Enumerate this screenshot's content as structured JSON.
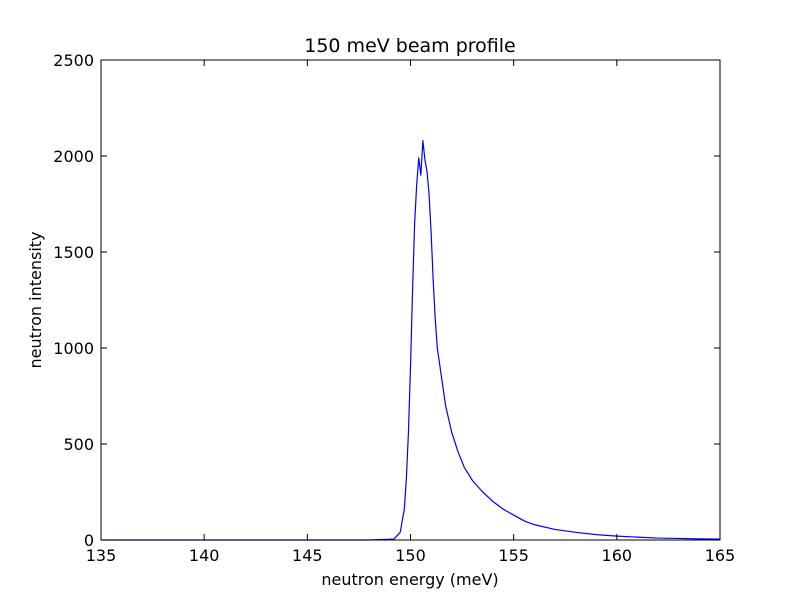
{
  "chart_data": {
    "type": "line",
    "title": "150 meV beam profile",
    "xlabel": "neutron energy (meV)",
    "ylabel": "neutron intensity",
    "xlim": [
      135,
      165
    ],
    "ylim": [
      0,
      2500
    ],
    "xticks": [
      135,
      140,
      145,
      150,
      155,
      160,
      165
    ],
    "yticks": [
      0,
      500,
      1000,
      1500,
      2000,
      2500
    ],
    "grid": false,
    "legend": "none",
    "series": [
      {
        "color": "#0000ff",
        "x": [
          135,
          140,
          145,
          148,
          149.2,
          149.5,
          149.7,
          149.8,
          149.9,
          150.0,
          150.1,
          150.2,
          150.3,
          150.4,
          150.5,
          150.6,
          150.7,
          150.8,
          150.9,
          151.0,
          151.1,
          151.2,
          151.3,
          151.5,
          151.7,
          152.0,
          152.3,
          152.6,
          153.0,
          153.5,
          154.0,
          154.5,
          155.0,
          155.5,
          156.0,
          157.0,
          158.0,
          159.0,
          160.0,
          161.0,
          162.0,
          163.0,
          164.0,
          165.0
        ],
        "y": [
          0,
          0,
          0,
          0,
          5,
          40,
          160,
          320,
          560,
          900,
          1300,
          1650,
          1850,
          1990,
          1900,
          2080,
          1980,
          1920,
          1800,
          1600,
          1350,
          1150,
          1000,
          850,
          700,
          560,
          460,
          380,
          310,
          250,
          200,
          160,
          130,
          100,
          80,
          55,
          40,
          28,
          20,
          15,
          10,
          8,
          6,
          5
        ]
      }
    ]
  }
}
